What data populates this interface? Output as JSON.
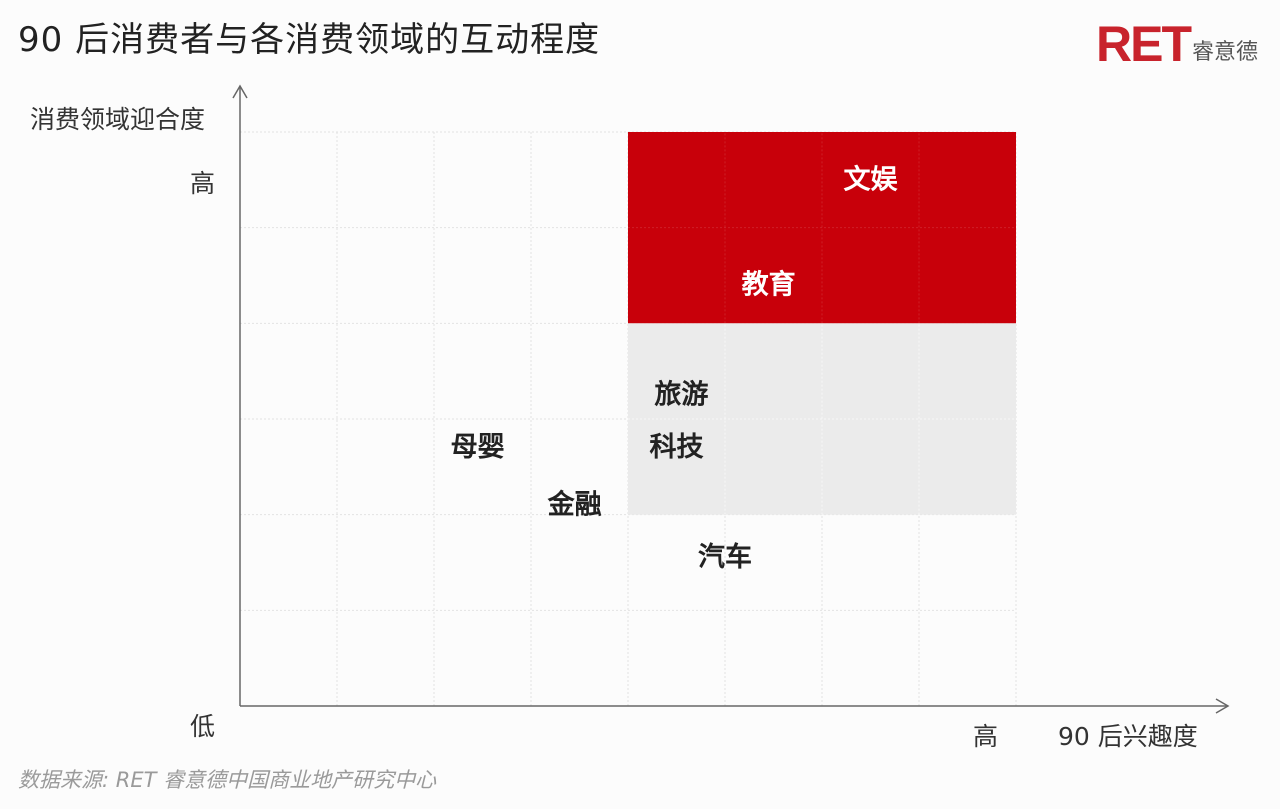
{
  "title": "90 后消费者与各消费领域的互动程度",
  "logo": {
    "mark": "RET",
    "name": "睿意德"
  },
  "source": "数据来源: RET 睿意德中国商业地产研究中心",
  "colors": {
    "accent": "#c8000a",
    "mid_zone": "#ebebeb",
    "axis": "#666666",
    "grid": "#e2e2e2"
  },
  "chart_data": {
    "type": "scatter",
    "title": "90 后消费者与各消费领域的互动程度",
    "xlabel": "90 后兴趣度",
    "ylabel": "消费领域迎合度",
    "x_tick_high": "高",
    "y_tick_high": "高",
    "origin_label": "低",
    "xlim": [
      0,
      8
    ],
    "ylim": [
      0,
      6
    ],
    "grid": true,
    "zones": [
      {
        "name": "high",
        "x": [
          4,
          8
        ],
        "y": [
          4,
          6
        ],
        "color": "#c8000a"
      },
      {
        "name": "medium",
        "x": [
          4,
          8
        ],
        "y": [
          2,
          4
        ],
        "color": "#ebebeb"
      }
    ],
    "points": [
      {
        "label": "文娱",
        "x": 6.5,
        "y": 5.5
      },
      {
        "label": "教育",
        "x": 5.45,
        "y": 4.4
      },
      {
        "label": "旅游",
        "x": 4.55,
        "y": 3.25
      },
      {
        "label": "科技",
        "x": 4.5,
        "y": 2.7
      },
      {
        "label": "母婴",
        "x": 2.45,
        "y": 2.7
      },
      {
        "label": "金融",
        "x": 3.45,
        "y": 2.1
      },
      {
        "label": "汽车",
        "x": 5.0,
        "y": 1.55
      }
    ]
  }
}
